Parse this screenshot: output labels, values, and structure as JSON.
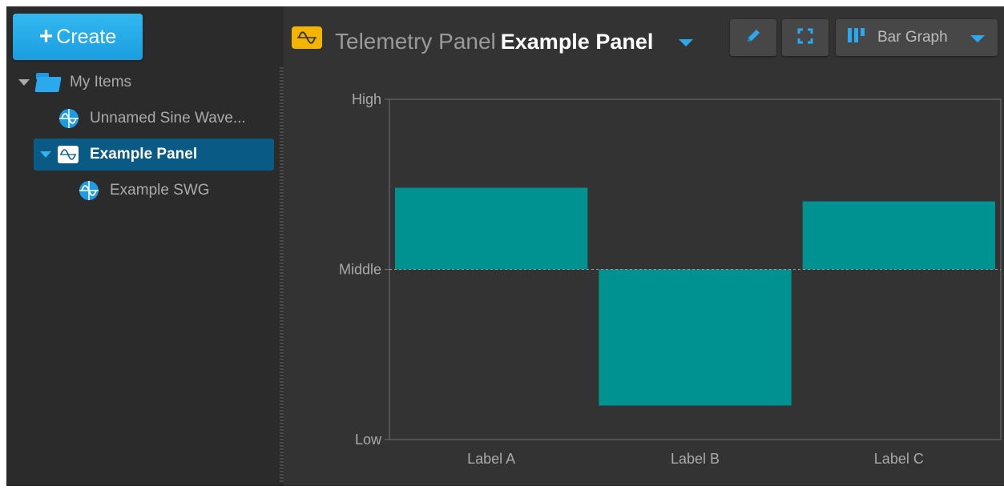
{
  "sidebar": {
    "create_label": "Create",
    "tree": [
      {
        "label": "My Items",
        "icon": "folder-icon",
        "expanded": true
      },
      {
        "label": "Unnamed Sine Wave...",
        "icon": "sine-wave-icon"
      },
      {
        "label": "Example Panel",
        "icon": "telemetry-panel-icon",
        "expanded": true,
        "selected": true
      },
      {
        "label": "Example SWG",
        "icon": "sine-wave-icon"
      }
    ]
  },
  "header": {
    "type_label": "Telemetry Panel",
    "object_name": "Example Panel",
    "type_icon": "telemetry-panel-icon",
    "view_label": "Bar Graph",
    "accent": "#2aa9ee",
    "icon_color": "#f4b400"
  },
  "chart_data": {
    "type": "bar",
    "categories": [
      "Label A",
      "Label B",
      "Label C"
    ],
    "baseline": 0,
    "series": [
      {
        "values": [
          0.48,
          -0.8,
          0.4
        ]
      }
    ],
    "y_ticks": [
      {
        "value": 1,
        "label": "High"
      },
      {
        "value": 0,
        "label": "Middle"
      },
      {
        "value": -1,
        "label": "Low"
      }
    ],
    "ylim": [
      -1,
      1
    ],
    "bar_color": "#009191",
    "baseline_dashed": true,
    "grid": false
  }
}
